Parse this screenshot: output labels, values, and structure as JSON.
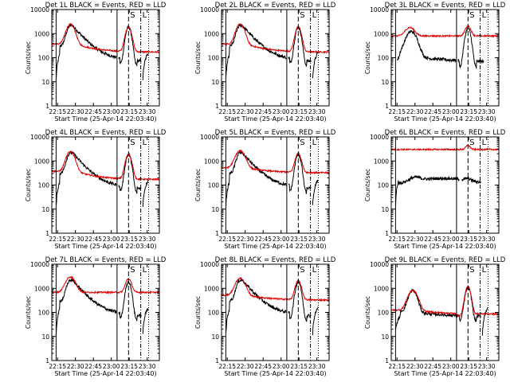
{
  "page": {
    "x_label": "Start Time (25-Apr-14 22:03:40)",
    "y_label": "Counts/sec"
  },
  "chart_data": [
    {
      "type": "line",
      "title": "Det 1L BLACK = Events, RED = LLD",
      "xlim": [
        22.17,
        23.67
      ],
      "ylim": [
        1,
        10000
      ],
      "yscale": "log",
      "xticks": [
        "22:15",
        "22:30",
        "22:45",
        "23:00",
        "23:15",
        "23:30"
      ],
      "yticks": [
        "1",
        "10",
        "100",
        "1000",
        "10000"
      ],
      "markers": [
        {
          "label": "S",
          "x": 23.24
        },
        {
          "label": "L",
          "x": 23.41
        }
      ],
      "series": [
        {
          "name": "BLACK = Events",
          "color": "#000000",
          "profile": "c1"
        },
        {
          "name": "RED = LLD",
          "color": "#dd0000",
          "profile": "r1"
        }
      ]
    },
    {
      "type": "line",
      "title": "Det 2L BLACK = Events, RED = LLD",
      "xlim": [
        22.17,
        23.67
      ],
      "ylim": [
        1,
        10000
      ],
      "yscale": "log",
      "xticks": [
        "22:15",
        "22:30",
        "22:45",
        "23:00",
        "23:15",
        "23:30"
      ],
      "yticks": [
        "1",
        "10",
        "100",
        "1000",
        "10000"
      ],
      "markers": [
        {
          "label": "S",
          "x": 23.24
        },
        {
          "label": "L",
          "x": 23.41
        }
      ],
      "series": [
        {
          "name": "BLACK = Events",
          "color": "#000000",
          "profile": "c1"
        },
        {
          "name": "RED = LLD",
          "color": "#dd0000",
          "profile": "r1"
        }
      ]
    },
    {
      "type": "line",
      "title": "Det 3L BLACK = Events, RED = LLD",
      "xlim": [
        22.17,
        23.67
      ],
      "ylim": [
        1,
        10000
      ],
      "yscale": "log",
      "xticks": [
        "22:15",
        "22:30",
        "22:45",
        "23:00",
        "23:15",
        "23:30"
      ],
      "yticks": [
        "1",
        "10",
        "100",
        "1000",
        "10000"
      ],
      "markers": [
        {
          "label": "S",
          "x": 23.24
        },
        {
          "label": "L",
          "x": 23.41
        }
      ],
      "series": [
        {
          "name": "BLACK = Events",
          "color": "#000000",
          "profile": "c3"
        },
        {
          "name": "RED = LLD",
          "color": "#dd0000",
          "profile": "r3"
        }
      ]
    },
    {
      "type": "line",
      "title": "Det 4L BLACK = Events, RED = LLD",
      "xlim": [
        22.17,
        23.67
      ],
      "ylim": [
        1,
        10000
      ],
      "yscale": "log",
      "xticks": [
        "22:15",
        "22:30",
        "22:45",
        "23:00",
        "23:15",
        "23:30"
      ],
      "yticks": [
        "1",
        "10",
        "100",
        "1000",
        "10000"
      ],
      "markers": [
        {
          "label": "S",
          "x": 23.24
        },
        {
          "label": "L",
          "x": 23.41
        }
      ],
      "series": [
        {
          "name": "BLACK = Events",
          "color": "#000000",
          "profile": "c1"
        },
        {
          "name": "RED = LLD",
          "color": "#dd0000",
          "profile": "r1"
        }
      ]
    },
    {
      "type": "line",
      "title": "Det 5L BLACK = Events, RED = LLD",
      "xlim": [
        22.17,
        23.67
      ],
      "ylim": [
        1,
        10000
      ],
      "yscale": "log",
      "xticks": [
        "22:15",
        "22:30",
        "22:45",
        "23:00",
        "23:15",
        "23:30"
      ],
      "yticks": [
        "1",
        "10",
        "100",
        "1000",
        "10000"
      ],
      "markers": [
        {
          "label": "S",
          "x": 23.24
        },
        {
          "label": "L",
          "x": 23.41
        }
      ],
      "series": [
        {
          "name": "BLACK = Events",
          "color": "#000000",
          "profile": "c1"
        },
        {
          "name": "RED = LLD",
          "color": "#dd0000",
          "profile": "r5"
        }
      ]
    },
    {
      "type": "line",
      "title": "Det 6L BLACK = Events, RED = LLD",
      "xlim": [
        22.17,
        23.67
      ],
      "ylim": [
        1,
        10000
      ],
      "yscale": "log",
      "xticks": [
        "22:15",
        "22:30",
        "22:45",
        "23:00",
        "23:15",
        "23:30"
      ],
      "yticks": [
        "1",
        "10",
        "100",
        "1000",
        "10000"
      ],
      "markers": [
        {
          "label": "S",
          "x": 23.24
        },
        {
          "label": "L",
          "x": 23.41
        }
      ],
      "series": [
        {
          "name": "BLACK = Events",
          "color": "#000000",
          "profile": "c6"
        },
        {
          "name": "RED = LLD",
          "color": "#dd0000",
          "profile": "r6"
        }
      ]
    },
    {
      "type": "line",
      "title": "Det 7L BLACK = Events, RED = LLD",
      "xlim": [
        22.17,
        23.67
      ],
      "ylim": [
        1,
        10000
      ],
      "yscale": "log",
      "xticks": [
        "22:15",
        "22:30",
        "22:45",
        "23:00",
        "23:15",
        "23:30"
      ],
      "yticks": [
        "1",
        "10",
        "100",
        "1000",
        "10000"
      ],
      "markers": [
        {
          "label": "S",
          "x": 23.24
        },
        {
          "label": "L",
          "x": 23.41
        }
      ],
      "series": [
        {
          "name": "BLACK = Events",
          "color": "#000000",
          "profile": "c1"
        },
        {
          "name": "RED = LLD",
          "color": "#dd0000",
          "profile": "r7"
        }
      ]
    },
    {
      "type": "line",
      "title": "Det 8L BLACK = Events, RED = LLD",
      "xlim": [
        22.17,
        23.67
      ],
      "ylim": [
        1,
        10000
      ],
      "yscale": "log",
      "xticks": [
        "22:15",
        "22:30",
        "22:45",
        "23:00",
        "23:15",
        "23:30"
      ],
      "yticks": [
        "1",
        "10",
        "100",
        "1000",
        "10000"
      ],
      "markers": [
        {
          "label": "S",
          "x": 23.24
        },
        {
          "label": "L",
          "x": 23.41
        }
      ],
      "series": [
        {
          "name": "BLACK = Events",
          "color": "#000000",
          "profile": "c1"
        },
        {
          "name": "RED = LLD",
          "color": "#dd0000",
          "profile": "r5"
        }
      ]
    },
    {
      "type": "line",
      "title": "Det 9L BLACK = Events, RED = LLD",
      "xlim": [
        22.17,
        23.67
      ],
      "ylim": [
        1,
        10000
      ],
      "yscale": "log",
      "xticks": [
        "22:15",
        "22:30",
        "22:45",
        "23:00",
        "23:15",
        "23:30"
      ],
      "yticks": [
        "1",
        "10",
        "100",
        "1000",
        "10000"
      ],
      "markers": [
        {
          "label": "S",
          "x": 23.24
        },
        {
          "label": "L",
          "x": 23.41
        }
      ],
      "series": [
        {
          "name": "BLACK = Events",
          "color": "#000000",
          "profile": "c9"
        },
        {
          "name": "RED = LLD",
          "color": "#dd0000",
          "profile": "r9"
        }
      ]
    }
  ]
}
